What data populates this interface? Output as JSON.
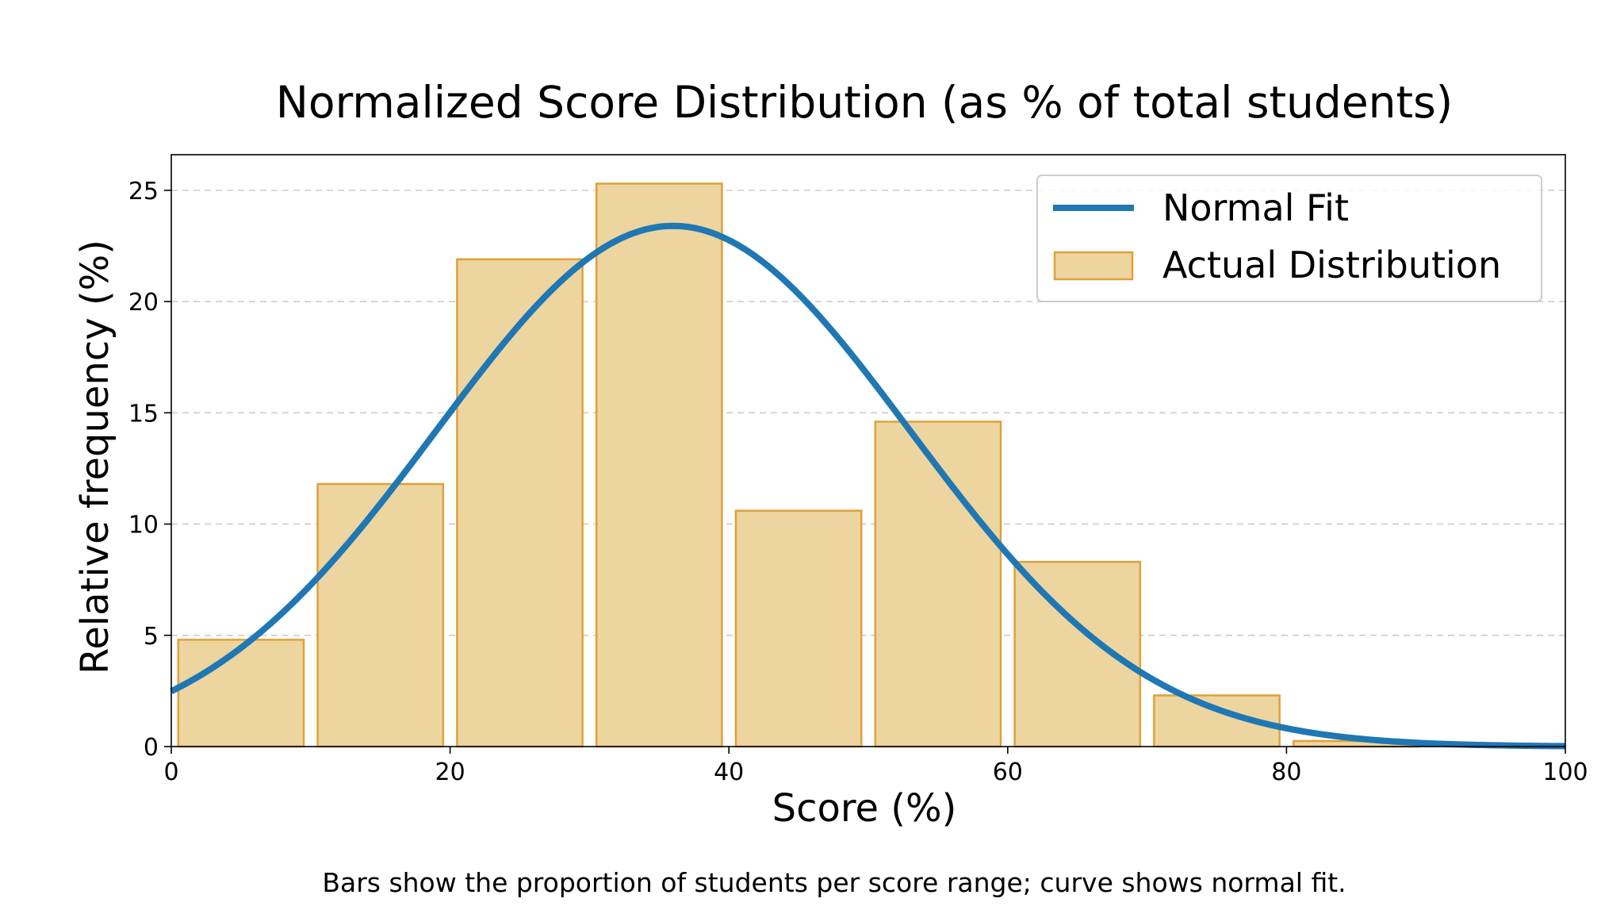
{
  "chart_data": {
    "type": "bar",
    "title": "Normalized Score Distribution (as % of total students)",
    "xlabel": "Score (%)",
    "ylabel": "Relative frequency (%)",
    "caption": "Bars show the proportion of students per score range; curve shows normal fit.",
    "xlim": [
      0,
      100
    ],
    "ylim": [
      0,
      26.6
    ],
    "xticks": [
      0,
      20,
      40,
      60,
      80,
      100
    ],
    "yticks": [
      0,
      5,
      10,
      15,
      20,
      25
    ],
    "grid": "y-dashed",
    "legend_position": "top-right",
    "bars": [
      {
        "x0": 0,
        "x1": 10,
        "value": 4.8
      },
      {
        "x0": 10,
        "x1": 20,
        "value": 11.8
      },
      {
        "x0": 20,
        "x1": 30,
        "value": 21.9
      },
      {
        "x0": 30,
        "x1": 40,
        "value": 25.3
      },
      {
        "x0": 40,
        "x1": 50,
        "value": 10.6
      },
      {
        "x0": 50,
        "x1": 60,
        "value": 14.6
      },
      {
        "x0": 60,
        "x1": 70,
        "value": 8.3
      },
      {
        "x0": 70,
        "x1": 80,
        "value": 2.3
      },
      {
        "x0": 80,
        "x1": 90,
        "value": 0.25
      },
      {
        "x0": 90,
        "x1": 100,
        "value": 0
      }
    ],
    "fit_curve": {
      "type": "normal",
      "mean": 36,
      "std": 17,
      "peak": 23.4
    },
    "series": [
      {
        "name": "Normal Fit",
        "kind": "line",
        "color": "#1f77b4"
      },
      {
        "name": "Actual Distribution",
        "kind": "bar",
        "color": "#edd59f",
        "edge_color": "#e0a03a"
      }
    ]
  }
}
